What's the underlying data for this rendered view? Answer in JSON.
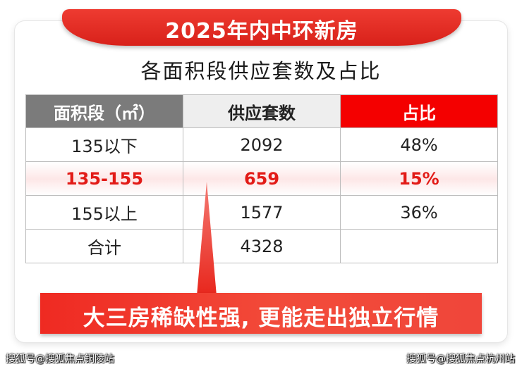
{
  "banner_title": "2025年内中环新房",
  "subtitle": "各面积段供应套数及占比",
  "table": {
    "headers": [
      "面积段（㎡）",
      "供应套数",
      "占比"
    ],
    "rows": [
      [
        "135以下",
        "2092",
        "48%"
      ],
      [
        "135-155",
        "659",
        "15%"
      ],
      [
        "155以上",
        "1577",
        "36%"
      ],
      [
        "合计",
        "4328",
        ""
      ]
    ],
    "highlight_row": 1
  },
  "callout": "大三房稀缺性强, 更能走出独立行情",
  "watermark_left": "搜狐号@搜狐焦点铜陵站",
  "watermark_right": "搜狐号@搜狐焦点杭州站",
  "colors": {
    "accent_red": "#f40000",
    "header_gray": "#7b7b7b",
    "highlight_text": "#e21b17"
  }
}
